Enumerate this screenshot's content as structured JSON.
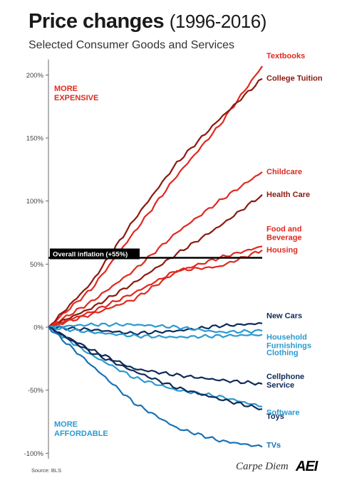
{
  "header": {
    "title_main": "Price changes",
    "title_years": "(1996-2016)",
    "subtitle": "Selected Consumer Goods and Services"
  },
  "footer": {
    "source": "Source: BLS",
    "brand": "Carpe Diem",
    "logo": "AEI"
  },
  "colors": {
    "red": "#e0291f",
    "darkred": "#8b1a10",
    "navy": "#0f2a5a",
    "cyan": "#2a9ad0",
    "blue": "#1a72b5"
  },
  "chart_data": {
    "type": "line",
    "x": [
      1996,
      2000,
      2004,
      2008,
      2012,
      2016
    ],
    "ylim": [
      -100,
      210
    ],
    "yticks": [
      -100,
      -50,
      0,
      50,
      100,
      150,
      200
    ],
    "ytick_labels": [
      "-100%",
      "-50%",
      "0%",
      "50%",
      "100%",
      "150%",
      "200%"
    ],
    "grid": false,
    "annotations": {
      "more_expensive": [
        "MORE",
        "EXPENSIVE"
      ],
      "more_affordable": [
        "MORE",
        "AFFORDABLE"
      ]
    },
    "inflation": {
      "label": "Overall inflation (+55%)",
      "value": 55
    },
    "series": [
      {
        "name": "Textbooks",
        "color": "red",
        "values": [
          0,
          30,
          75,
          120,
          160,
          207
        ]
      },
      {
        "name": "College Tuition",
        "color": "darkred",
        "values": [
          0,
          35,
          85,
          130,
          165,
          197
        ]
      },
      {
        "name": "Childcare",
        "color": "red",
        "values": [
          0,
          20,
          45,
          75,
          100,
          123
        ]
      },
      {
        "name": "Health Care",
        "color": "darkred",
        "values": [
          0,
          15,
          35,
          58,
          80,
          105
        ]
      },
      {
        "name": "Food and Beverage",
        "color": "red",
        "values": [
          0,
          10,
          22,
          44,
          55,
          64
        ]
      },
      {
        "name": "Housing",
        "color": "red",
        "values": [
          0,
          12,
          27,
          45,
          48,
          61
        ]
      },
      {
        "name": "New Cars",
        "color": "navy",
        "values": [
          0,
          -2,
          -5,
          -3,
          1,
          3
        ]
      },
      {
        "name": "Household Furnishings",
        "color": "cyan",
        "values": [
          0,
          2,
          2,
          0,
          -4,
          -3
        ]
      },
      {
        "name": "Clothing",
        "color": "cyan",
        "values": [
          0,
          -4,
          -7,
          -8,
          -7,
          -6
        ]
      },
      {
        "name": "Cellphone Service",
        "color": "navy",
        "values": [
          0,
          -18,
          -33,
          -38,
          -42,
          -45
        ]
      },
      {
        "name": "Software",
        "color": "cyan",
        "values": [
          0,
          -22,
          -40,
          -50,
          -55,
          -63
        ]
      },
      {
        "name": "Toys",
        "color": "navy",
        "values": [
          0,
          -20,
          -35,
          -48,
          -57,
          -65
        ]
      },
      {
        "name": "TVs",
        "color": "blue",
        "values": [
          0,
          -30,
          -60,
          -80,
          -90,
          -95
        ]
      }
    ],
    "labels": [
      {
        "series": "Textbooks",
        "lines": [
          "Textbooks"
        ]
      },
      {
        "series": "College Tuition",
        "lines": [
          "College Tuition"
        ]
      },
      {
        "series": "Childcare",
        "lines": [
          "Childcare"
        ]
      },
      {
        "series": "Health Care",
        "lines": [
          "Health Care"
        ]
      },
      {
        "series": "Food and Beverage",
        "lines": [
          "Food and",
          "Beverage"
        ]
      },
      {
        "series": "Housing",
        "lines": [
          "Housing"
        ]
      },
      {
        "series": "New Cars",
        "lines": [
          "New Cars"
        ]
      },
      {
        "series": "Household Furnishings",
        "lines": [
          "Household",
          "Furnishings"
        ]
      },
      {
        "series": "Clothing",
        "lines": [
          "Clothing"
        ]
      },
      {
        "series": "Cellphone Service",
        "lines": [
          "Cellphone",
          "Service"
        ]
      },
      {
        "series": "Software",
        "lines": [
          "Software"
        ]
      },
      {
        "series": "Toys",
        "lines": [
          "Toys"
        ]
      },
      {
        "series": "TVs",
        "lines": [
          "TVs"
        ]
      }
    ]
  }
}
